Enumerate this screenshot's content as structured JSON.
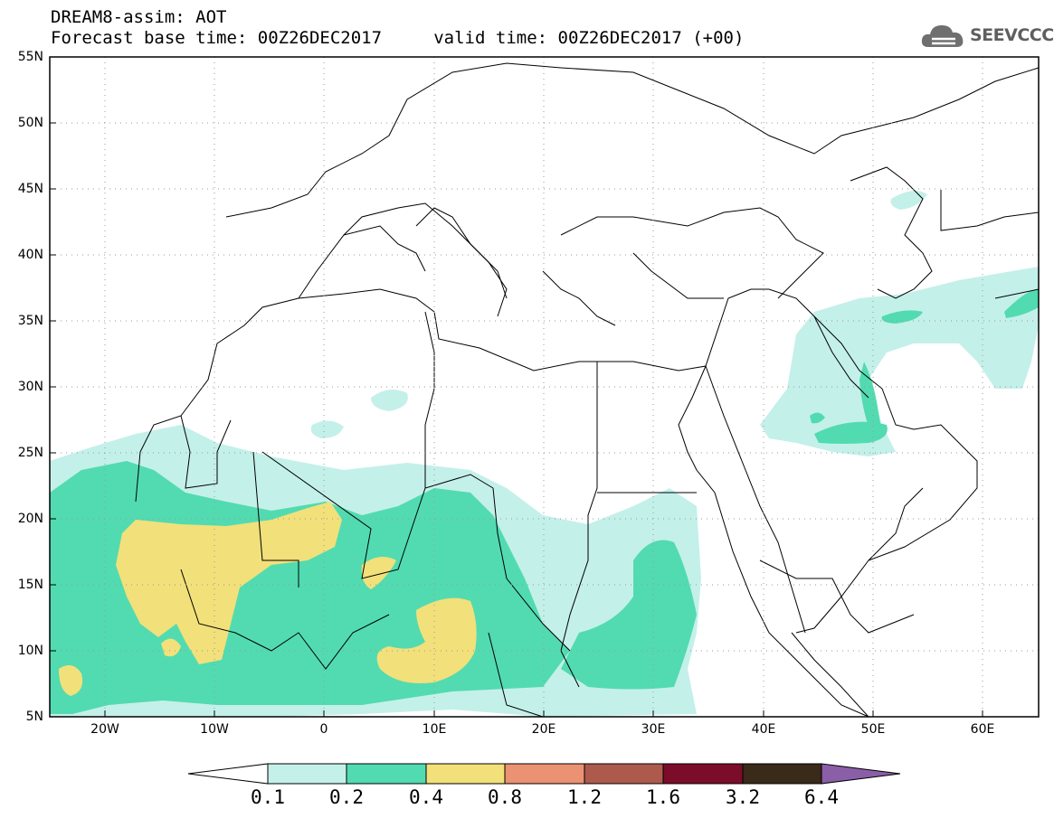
{
  "title": {
    "line1": "DREAM8-assim: AOT",
    "line2": "Forecast base time: 00Z26DEC2017     valid time: 00Z26DEC2017 (+00)"
  },
  "logo": {
    "text": "SEEVCCC",
    "icon": "cloud-icon"
  },
  "map": {
    "lon_range": [
      -25,
      65
    ],
    "lat_range": [
      5,
      55
    ],
    "lat_labels": [
      "55N",
      "50N",
      "45N",
      "40N",
      "35N",
      "30N",
      "25N",
      "20N",
      "15N",
      "10N",
      "5N"
    ],
    "lon_labels": [
      "20W",
      "10W",
      "0",
      "10E",
      "20E",
      "30E",
      "40E",
      "50E",
      "60E"
    ],
    "gridlines": "dotted"
  },
  "colorbar": {
    "labels": [
      "0.1",
      "0.2",
      "0.4",
      "0.8",
      "1.2",
      "1.6",
      "3.2",
      "6.4"
    ],
    "colors": [
      "#ffffff",
      "#c4f0ea",
      "#52dbb0",
      "#f2e07a",
      "#eb9273",
      "#ad5a4d",
      "#7b0d2a",
      "#3a2a1a",
      "#8a5fa8"
    ]
  }
}
